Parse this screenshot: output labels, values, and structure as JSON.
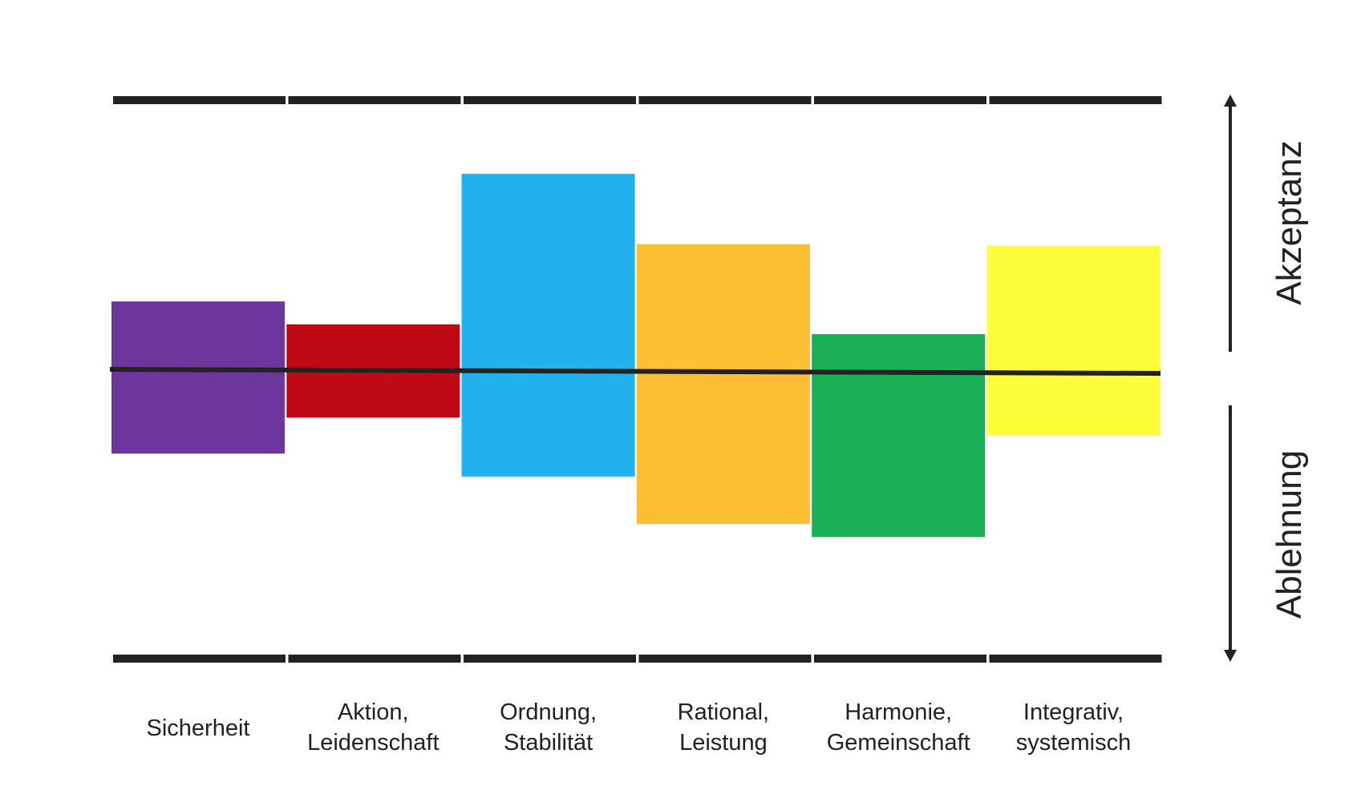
{
  "chart_data": {
    "type": "bar",
    "categories": [
      [
        "Sicherheit"
      ],
      [
        "Aktion,",
        "Leidenschaft"
      ],
      [
        "Ordnung,",
        "Stabilität"
      ],
      [
        "Rational,",
        "Leistung"
      ],
      [
        "Harmonie,",
        "Gemeinschaft"
      ],
      [
        "Integrativ,",
        "systemisch"
      ]
    ],
    "series": [
      {
        "values_top": [
          42,
          28,
          120,
          77,
          22,
          76
        ],
        "values_bottom": [
          -51,
          -29,
          -65,
          -94,
          -102,
          -40
        ]
      }
    ],
    "colors": [
      "#6c369c",
      "#bf0a16",
      "#21b1ec",
      "#fcbe32",
      "#1bb056",
      "#fefd3a"
    ],
    "ylim": [
      -171,
      165
    ],
    "axis_labels": {
      "up": "Akzeptanz",
      "down": "Ablehnung"
    },
    "grid": false,
    "legend": "none"
  }
}
